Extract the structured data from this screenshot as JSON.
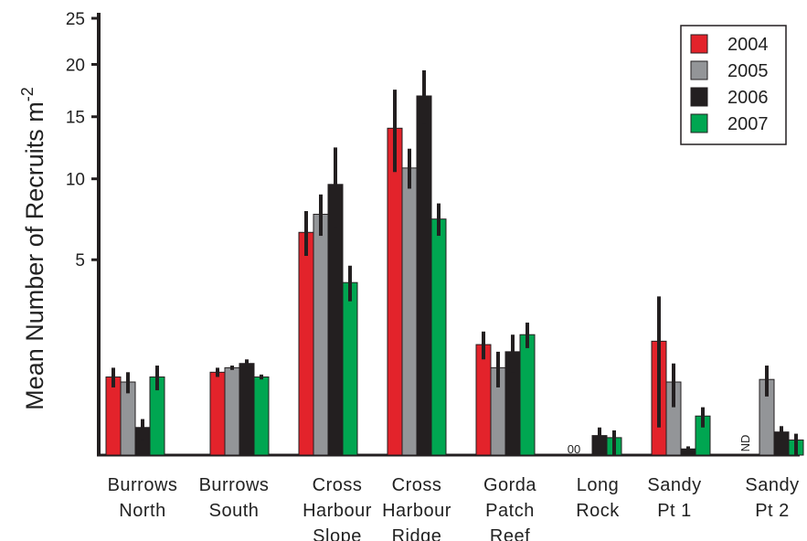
{
  "chart_data": {
    "type": "bar",
    "ylabel": "Mean Number of Recruits m",
    "ylabel_superscript": "-2",
    "yscale": "sqrt",
    "ylim": [
      0,
      25
    ],
    "yticks": [
      "5",
      "10",
      "15",
      "20",
      "25"
    ],
    "grid": false,
    "legend_position": "top-right",
    "categories": [
      [
        "Burrows",
        "North"
      ],
      [
        "Burrows",
        "South"
      ],
      [
        "Cross",
        "Harbour",
        "Slope"
      ],
      [
        "Cross",
        "Harbour",
        "Ridge"
      ],
      [
        "Gorda",
        "Patch",
        "Reef"
      ],
      [
        "Long",
        "Rock"
      ],
      [
        "Sandy",
        "Pt 1"
      ],
      [
        "Sandy",
        "Pt 2"
      ]
    ],
    "series": [
      {
        "name": "2004",
        "color": "#e3232b",
        "values": [
          0.8,
          0.9,
          6.5,
          14.0,
          1.6,
          0,
          1.7,
          null
        ],
        "error": [
          0.2,
          0.1,
          1.3,
          3.5,
          0.4,
          0,
          1.6,
          null
        ]
      },
      {
        "name": "2005",
        "color": "#939598",
        "values": [
          0.7,
          1.0,
          7.6,
          10.8,
          1.0,
          0,
          0.7,
          0.75
        ],
        "error": [
          0.2,
          0.05,
          1.3,
          1.5,
          0.4,
          0,
          0.4,
          0.3
        ]
      },
      {
        "name": "2006",
        "color": "#231f20",
        "values": [
          0.1,
          1.1,
          9.6,
          16.9,
          1.4,
          0.05,
          0.005,
          0.07
        ],
        "error": [
          0.07,
          0.1,
          2.8,
          2.5,
          0.5,
          0.05,
          0.005,
          0.04
        ]
      },
      {
        "name": "2007",
        "color": "#00a651",
        "values": [
          0.8,
          0.8,
          3.9,
          7.3,
          1.9,
          0.04,
          0.2,
          0.03
        ],
        "error": [
          0.25,
          0.05,
          0.8,
          1.0,
          0.4,
          0.04,
          0.1,
          0.03
        ]
      }
    ],
    "annotations": [
      {
        "category": "Long Rock",
        "text": "00"
      },
      {
        "category": "Sandy Pt 2",
        "text": "ND"
      }
    ]
  }
}
